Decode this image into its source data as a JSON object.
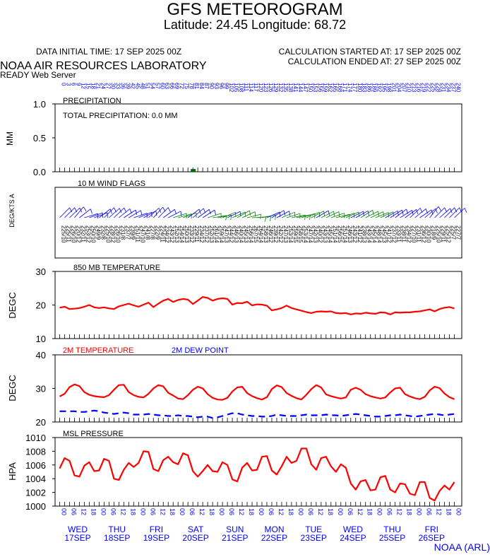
{
  "header": {
    "title": "GFS METEOROGRAM",
    "location": "Latitude: 24.45 Longitude:  68.72",
    "initial_time": "DATA INITIAL TIME: 17 SEP 2025 00Z",
    "calc_started": "CALCULATION STARTED AT: 17 SEP 2025 00Z",
    "calc_ended": "CALCULATION ENDED AT: 27 SEP 2025 00Z",
    "lab": "NOAA AIR RESOURCES LABORATORY",
    "server": "READY Web Server"
  },
  "colors": {
    "temperature": "#ff0000",
    "dewpoint": "#0000ff",
    "hour_labels": "#0000ff",
    "day_labels": "#0000ff",
    "wind_barb_blue": "#0000ff",
    "wind_barb_green": "#008000",
    "precip_bar": "#006400",
    "axis": "#000000"
  },
  "top_hour_labels": [
    "0",
    "3",
    "6",
    "9",
    "12",
    "15",
    "18",
    "21",
    "24",
    "27",
    "30",
    "33",
    "36",
    "39",
    "42",
    "45",
    "48",
    "51",
    "54",
    "57",
    "60",
    "63",
    "66",
    "69",
    "72",
    "75",
    "78",
    "81",
    "84",
    "87",
    "90",
    "93",
    "96",
    "99",
    "102",
    "105",
    "108",
    "111",
    "114",
    "117",
    "120",
    "123",
    "126",
    "129",
    "132",
    "135",
    "138",
    "141",
    "144",
    "147",
    "150",
    "153",
    "156",
    "159",
    "162",
    "165",
    "168",
    "171",
    "174",
    "177",
    "180",
    "183",
    "186",
    "189",
    "192",
    "195",
    "198",
    "201",
    "204",
    "207",
    "210",
    "213",
    "216",
    "219",
    "222",
    "225",
    "228",
    "231",
    "234",
    "237",
    "240"
  ],
  "bottom_hour_labels": [
    "00",
    "06",
    "12",
    "18",
    "00",
    "06",
    "12",
    "18",
    "00",
    "06",
    "12",
    "18",
    "00",
    "06",
    "12",
    "18",
    "00",
    "06",
    "12",
    "18",
    "00",
    "06",
    "12",
    "18",
    "00",
    "06",
    "12",
    "18",
    "00",
    "06",
    "12",
    "18",
    "00",
    "06",
    "12",
    "18",
    "00",
    "06",
    "12",
    "18",
    "00"
  ],
  "day_labels": [
    {
      "day": "WED",
      "date": "17SEP"
    },
    {
      "day": "THU",
      "date": "18SEP"
    },
    {
      "day": "FRI",
      "date": "19SEP"
    },
    {
      "day": "SAT",
      "date": "20SEP"
    },
    {
      "day": "SUN",
      "date": "21SEP"
    },
    {
      "day": "MON",
      "date": "22SEP"
    },
    {
      "day": "TUE",
      "date": "23SEP"
    },
    {
      "day": "WED",
      "date": "24SEP"
    },
    {
      "day": "THU",
      "date": "25SEP"
    },
    {
      "day": "FRI",
      "date": "26SEP"
    }
  ],
  "footer": "NOAA (ARL)",
  "chart_data": [
    {
      "type": "bar",
      "title": "PRECIPITATION",
      "annotation": "TOTAL PRECIPITATION:   0.0 MM",
      "ylabel": "MM",
      "ylim": [
        0,
        1
      ],
      "yticks": [
        "0.0",
        "0.5",
        "1.0"
      ],
      "x_hours_step": 3,
      "values": [
        0,
        0,
        0,
        0,
        0,
        0,
        0,
        0,
        0,
        0,
        0,
        0,
        0,
        0,
        0,
        0,
        0,
        0,
        0,
        0,
        0,
        0,
        0,
        0,
        0,
        0,
        0,
        0.04,
        0,
        0,
        0,
        0,
        0,
        0,
        0,
        0,
        0,
        0,
        0,
        0,
        0,
        0,
        0,
        0,
        0,
        0,
        0,
        0,
        0,
        0,
        0,
        0,
        0,
        0,
        0,
        0,
        0,
        0,
        0,
        0,
        0,
        0,
        0,
        0,
        0,
        0,
        0,
        0,
        0,
        0,
        0,
        0,
        0,
        0,
        0,
        0,
        0,
        0,
        0,
        0,
        0
      ]
    },
    {
      "type": "table",
      "title": "10 M  WIND FLAGS",
      "ylabel": "DEG/KTS  A",
      "x_hours_step": 3,
      "directions": [
        225,
        225,
        226,
        220,
        232,
        253,
        250,
        249,
        232,
        225,
        228,
        226,
        231,
        237,
        239,
        251,
        247,
        241,
        227,
        222,
        224,
        234,
        243,
        252,
        254,
        250,
        233,
        229,
        234,
        237,
        252,
        261,
        259,
        247,
        244,
        246,
        240,
        245,
        256,
        267,
        264,
        258,
        246,
        239,
        242,
        247,
        253,
        259,
        258,
        253,
        247,
        242,
        240,
        243,
        245,
        251,
        256,
        251,
        246,
        243,
        241,
        238,
        243,
        245,
        248,
        245,
        241,
        237,
        233,
        238,
        234,
        227,
        231,
        236,
        230,
        218,
        225,
        229,
        225,
        225,
        227
      ],
      "speeds": [
        10,
        11,
        10,
        12,
        11,
        12,
        10,
        9,
        8,
        10,
        12,
        10,
        8,
        7,
        9,
        11,
        10,
        8,
        8,
        9,
        11,
        12,
        12,
        13,
        14,
        13,
        12,
        11,
        12,
        12,
        13,
        14,
        14,
        13,
        12,
        13,
        14,
        13,
        14,
        15,
        14,
        13,
        12,
        12,
        12,
        13,
        14,
        15,
        15,
        14,
        14,
        13,
        12,
        13,
        14,
        14,
        15,
        14,
        13,
        12,
        12,
        13,
        14,
        14,
        14,
        13,
        12,
        12,
        11,
        11,
        12,
        10,
        11,
        12,
        10,
        9,
        10,
        11,
        12,
        7,
        7
      ]
    },
    {
      "type": "line",
      "title": "850 MB  TEMPERATURE",
      "ylabel": "DEGC",
      "ylim": [
        10,
        30
      ],
      "yticks": [
        "10",
        "20",
        "30"
      ],
      "x_hours_step": 3,
      "series": [
        {
          "values": [
            19.2,
            19.5,
            18.8,
            18.9,
            19.1,
            19.5,
            20.0,
            19.3,
            19.1,
            19.3,
            19.0,
            18.8,
            19.6,
            20.0,
            20.4,
            19.9,
            19.5,
            20.1,
            20.7,
            19.4,
            20.4,
            21.3,
            21.8,
            20.9,
            21.5,
            21.8,
            21.6,
            20.3,
            21.3,
            22.4,
            22.1,
            21.3,
            21.8,
            22.0,
            21.8,
            20.1,
            20.6,
            20.5,
            21.0,
            19.9,
            20.2,
            20.1,
            19.8,
            18.4,
            18.7,
            19.1,
            19.8,
            19.1,
            18.7,
            18.3,
            17.9,
            17.6,
            18.0,
            18.1,
            18.0,
            18.1,
            17.6,
            17.5,
            17.6,
            17.2,
            17.5,
            17.4,
            17.7,
            17.5,
            17.4,
            17.8,
            17.7,
            17.2,
            17.8,
            17.7,
            17.8,
            17.8,
            18.0,
            18.1,
            18.4,
            18.7,
            18.1,
            18.8,
            19.2,
            19.4,
            19.0
          ]
        }
      ]
    },
    {
      "type": "line",
      "title": "2M TEMPERATURE    2M  DEW POINT",
      "ylabel": "DEGC",
      "ylim": [
        20,
        40
      ],
      "yticks": [
        "20",
        "30",
        "40"
      ],
      "x_hours_step": 3,
      "series": [
        {
          "name": "2M TEMPERATURE",
          "values": [
            27.6,
            28.4,
            30.4,
            31.2,
            30.7,
            28.9,
            28.1,
            27.7,
            27.5,
            27.4,
            28.0,
            29.6,
            31.0,
            31.1,
            28.9,
            28.0,
            27.5,
            27.3,
            28.4,
            30.0,
            31.0,
            30.6,
            28.7,
            27.9,
            27.0,
            26.8,
            28.0,
            29.6,
            30.5,
            30.0,
            28.3,
            27.2,
            26.7,
            26.6,
            27.2,
            29.1,
            30.3,
            30.5,
            28.6,
            27.7,
            27.1,
            26.7,
            27.4,
            29.8,
            30.9,
            30.4,
            28.6,
            27.8,
            27.1,
            26.7,
            28.1,
            29.8,
            31.0,
            30.3,
            28.2,
            27.7,
            27.3,
            27.0,
            27.3,
            29.6,
            30.2,
            29.6,
            28.3,
            27.7,
            27.3,
            27.0,
            27.3,
            28.8,
            30.0,
            30.2,
            28.3,
            27.6,
            27.1,
            26.8,
            27.5,
            29.4,
            30.5,
            30.1,
            28.5,
            27.4,
            26.8
          ]
        },
        {
          "name": "2M  DEW POINT",
          "values": [
            23.2,
            23.2,
            23.2,
            23.2,
            23.0,
            23.0,
            23.2,
            23.4,
            23.2,
            22.8,
            22.6,
            22.4,
            22.6,
            22.8,
            22.6,
            22.2,
            22.2,
            22.2,
            22.4,
            22.2,
            22.0,
            22.0,
            21.8,
            21.8,
            22.0,
            21.8,
            21.8,
            21.6,
            21.4,
            21.6,
            21.6,
            21.2,
            21.4,
            21.8,
            22.2,
            22.6,
            22.6,
            22.2,
            22.0,
            21.8,
            21.8,
            21.6,
            21.6,
            21.8,
            22.2,
            22.0,
            21.8,
            21.8,
            21.8,
            22.0,
            22.2,
            22.0,
            22.0,
            22.0,
            22.2,
            22.0,
            22.0,
            21.8,
            22.0,
            22.2,
            22.4,
            22.2,
            22.0,
            21.8,
            21.6,
            21.6,
            21.8,
            22.0,
            22.0,
            22.2,
            22.0,
            21.8,
            21.6,
            21.8,
            22.0,
            22.2,
            22.4,
            22.2,
            22.0,
            22.2,
            22.4
          ]
        }
      ]
    },
    {
      "type": "line",
      "title": "MSL PRESSURE",
      "ylabel": "HPA",
      "ylim": [
        1000,
        1010
      ],
      "yticks": [
        "1000",
        "1002",
        "1004",
        "1006",
        "1008",
        "1010"
      ],
      "x_hours_step": 3,
      "series": [
        {
          "values": [
            1005.5,
            1007.0,
            1006.6,
            1004.5,
            1004.3,
            1005.9,
            1006.4,
            1005.1,
            1005.2,
            1006.9,
            1006.6,
            1004.0,
            1003.8,
            1005.3,
            1006.3,
            1005.7,
            1006.3,
            1008.0,
            1007.9,
            1005.4,
            1005.1,
            1006.7,
            1007.2,
            1006.4,
            1006.1,
            1007.7,
            1007.4,
            1005.1,
            1004.3,
            1005.1,
            1006.0,
            1005.1,
            1005.0,
            1006.4,
            1006.0,
            1003.9,
            1003.6,
            1005.6,
            1006.3,
            1005.2,
            1005.3,
            1007.2,
            1007.3,
            1005.2,
            1004.6,
            1005.8,
            1007.2,
            1006.3,
            1006.6,
            1008.4,
            1008.4,
            1006.1,
            1005.3,
            1007.0,
            1007.2,
            1005.8,
            1005.0,
            1006.1,
            1005.6,
            1003.3,
            1002.4,
            1003.6,
            1003.8,
            1002.3,
            1002.4,
            1004.2,
            1004.4,
            1002.4,
            1002.0,
            1003.3,
            1003.2,
            1001.8,
            1001.6,
            1003.5,
            1003.5,
            1001.2,
            1000.8,
            1002.2,
            1003.0,
            1002.4,
            1003.5
          ]
        }
      ]
    }
  ]
}
